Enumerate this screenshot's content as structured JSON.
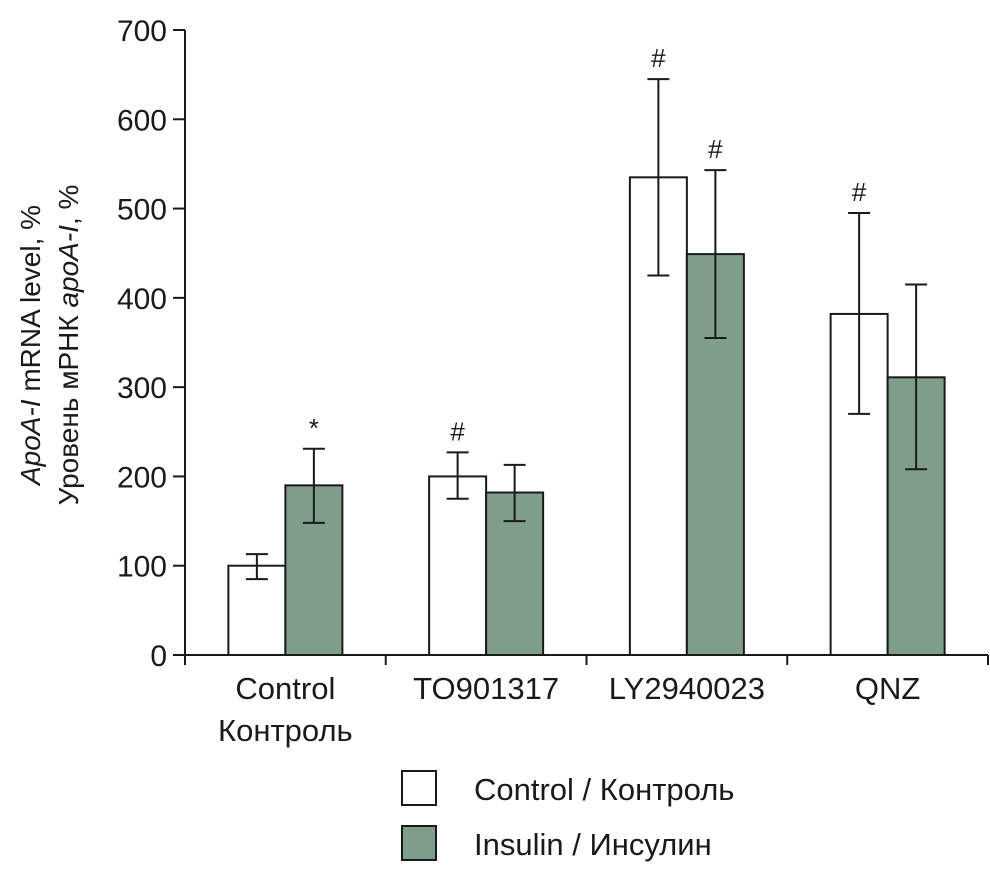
{
  "chart_data": {
    "type": "bar",
    "ylabel_line1_italic": "ApoA-I",
    "ylabel_line1_rest": " mRNA level, %",
    "ylabel_line2_pre": "Уровень мРНК ",
    "ylabel_line2_italic": "apoA-I",
    "ylabel_line2_post": ", %",
    "ylim": [
      0,
      700
    ],
    "yticks": [
      "0",
      "100",
      "200",
      "300",
      "400",
      "500",
      "600",
      "700"
    ],
    "categories": [
      {
        "line1": "Control",
        "line2": "Контроль"
      },
      {
        "line1": "TO901317",
        "line2": ""
      },
      {
        "line1": "LY2940023",
        "line2": ""
      },
      {
        "line1": "QNZ",
        "line2": ""
      }
    ],
    "series": [
      {
        "name": "Control / Контроль",
        "color": "#ffffff",
        "values": [
          100,
          200,
          535,
          382
        ],
        "err_low": [
          85,
          175,
          425,
          270
        ],
        "err_high": [
          113,
          227,
          645,
          495
        ],
        "annotations": [
          "",
          "#",
          "#",
          "#"
        ]
      },
      {
        "name": "Insulin / Инсулин",
        "color": "#7f9e8a",
        "values": [
          190,
          182,
          449,
          311
        ],
        "err_low": [
          148,
          150,
          355,
          208
        ],
        "err_high": [
          231,
          213,
          543,
          415
        ],
        "annotations": [
          "*",
          "",
          "#",
          ""
        ]
      }
    ],
    "grid": false,
    "legend_position": "bottom-center"
  }
}
